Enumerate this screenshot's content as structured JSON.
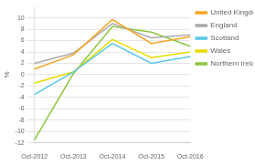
{
  "chart_data": {
    "type": "line",
    "categories": [
      "Oct-2012",
      "Oct-2013",
      "Oct-2014",
      "Oct-2015",
      "Oct-2016"
    ],
    "series": [
      {
        "name": "United Kingdom",
        "color": "#F5A623",
        "values": [
          1.0,
          3.5,
          9.7,
          5.5,
          6.7
        ]
      },
      {
        "name": "England",
        "color": "#AAAAAA",
        "values": [
          2.0,
          3.8,
          9.0,
          6.5,
          7.0
        ]
      },
      {
        "name": "Scotland",
        "color": "#5BC8E8",
        "values": [
          -3.5,
          0.5,
          5.5,
          2.0,
          3.2
        ]
      },
      {
        "name": "Wales",
        "color": "#E8DC00",
        "values": [
          -1.5,
          0.5,
          6.2,
          3.0,
          4.0
        ]
      },
      {
        "name": "Northern Ireland",
        "color": "#8DC63F",
        "values": [
          -11.5,
          0.2,
          8.5,
          7.5,
          5.0
        ]
      }
    ],
    "ylabel": "%",
    "ylim": [
      -12,
      12
    ],
    "yticks": [
      -12,
      -10,
      -8,
      -6,
      -4,
      -2,
      0,
      2,
      4,
      6,
      8,
      10
    ],
    "grid": true,
    "legend": "right"
  }
}
